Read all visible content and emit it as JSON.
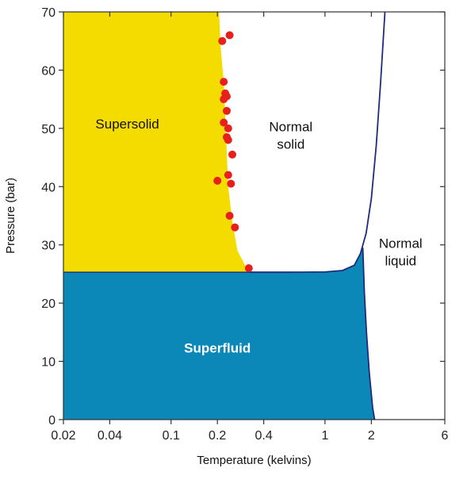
{
  "chart_data": {
    "type": "area",
    "title": "",
    "xlabel": "Temperature (kelvins)",
    "ylabel": "Pressure (bar)",
    "x_scale": "log",
    "xlim": [
      0.02,
      6
    ],
    "ylim": [
      0,
      70
    ],
    "x_ticks": [
      0.02,
      0.04,
      0.1,
      0.2,
      0.4,
      1,
      2,
      6
    ],
    "x_tick_labels": [
      "0.02",
      "0.04",
      "0.1",
      "0.2",
      "0.4",
      "1",
      "2",
      "6"
    ],
    "y_ticks": [
      0,
      10,
      20,
      30,
      40,
      50,
      60,
      70
    ],
    "y_tick_labels": [
      "0",
      "10",
      "20",
      "30",
      "40",
      "50",
      "60",
      "70"
    ],
    "grid": false,
    "colors": {
      "supersolid": "#f5dc00",
      "superfluid": "#0b87b8",
      "normal": "#ffffff",
      "boundary_line": "#1f2a78",
      "data_points": "#e8201c",
      "superfluid_label": "#ffffff",
      "dark_label": "#111111"
    },
    "regions": [
      {
        "name": "Supersolid",
        "label": "Supersolid",
        "label_at": [
          0.052,
          50
        ]
      },
      {
        "name": "Normal solid",
        "label": "Normal\nsolid",
        "label_at": [
          0.6,
          49.5
        ]
      },
      {
        "name": "Normal liquid",
        "label": "Normal\nliquid",
        "label_at": [
          3.1,
          29.5
        ]
      },
      {
        "name": "Superfluid",
        "label": "Superfluid",
        "label_at": [
          0.2,
          11.5
        ]
      }
    ],
    "supersolid_boundary": [
      {
        "x": 0.205,
        "y": 70
      },
      {
        "x": 0.21,
        "y": 64
      },
      {
        "x": 0.22,
        "y": 58
      },
      {
        "x": 0.225,
        "y": 52
      },
      {
        "x": 0.23,
        "y": 46
      },
      {
        "x": 0.235,
        "y": 40
      },
      {
        "x": 0.25,
        "y": 34
      },
      {
        "x": 0.27,
        "y": 29
      },
      {
        "x": 0.32,
        "y": 25.3
      }
    ],
    "solid_liquid_boundary": [
      {
        "x": 0.32,
        "y": 25.3
      },
      {
        "x": 0.6,
        "y": 25.3
      },
      {
        "x": 1.0,
        "y": 25.35
      },
      {
        "x": 1.3,
        "y": 25.6
      },
      {
        "x": 1.55,
        "y": 26.5
      },
      {
        "x": 1.7,
        "y": 28.5
      },
      {
        "x": 1.85,
        "y": 32
      },
      {
        "x": 2.0,
        "y": 38
      },
      {
        "x": 2.15,
        "y": 47
      },
      {
        "x": 2.3,
        "y": 58
      },
      {
        "x": 2.45,
        "y": 70
      }
    ],
    "lambda_line": [
      {
        "x": 1.76,
        "y": 29.5
      },
      {
        "x": 1.8,
        "y": 22
      },
      {
        "x": 1.86,
        "y": 15
      },
      {
        "x": 1.94,
        "y": 8
      },
      {
        "x": 2.04,
        "y": 2
      },
      {
        "x": 2.1,
        "y": 0
      }
    ],
    "superfluid_top": [
      {
        "x": 0.02,
        "y": 25.3
      },
      {
        "x": 0.6,
        "y": 25.3
      },
      {
        "x": 1.0,
        "y": 25.35
      },
      {
        "x": 1.3,
        "y": 25.6
      },
      {
        "x": 1.55,
        "y": 26.5
      },
      {
        "x": 1.7,
        "y": 28.5
      },
      {
        "x": 1.76,
        "y": 29.5
      }
    ],
    "series": [
      {
        "type": "scatter",
        "points": [
          {
            "x": 0.215,
            "y": 65
          },
          {
            "x": 0.24,
            "y": 66
          },
          {
            "x": 0.22,
            "y": 58
          },
          {
            "x": 0.225,
            "y": 56
          },
          {
            "x": 0.23,
            "y": 55.5
          },
          {
            "x": 0.22,
            "y": 55
          },
          {
            "x": 0.23,
            "y": 53
          },
          {
            "x": 0.22,
            "y": 51
          },
          {
            "x": 0.235,
            "y": 50
          },
          {
            "x": 0.23,
            "y": 48.5
          },
          {
            "x": 0.235,
            "y": 48
          },
          {
            "x": 0.25,
            "y": 45.5
          },
          {
            "x": 0.235,
            "y": 42
          },
          {
            "x": 0.2,
            "y": 41
          },
          {
            "x": 0.245,
            "y": 40.5
          },
          {
            "x": 0.24,
            "y": 35
          },
          {
            "x": 0.26,
            "y": 33
          },
          {
            "x": 0.32,
            "y": 26
          }
        ]
      }
    ]
  }
}
